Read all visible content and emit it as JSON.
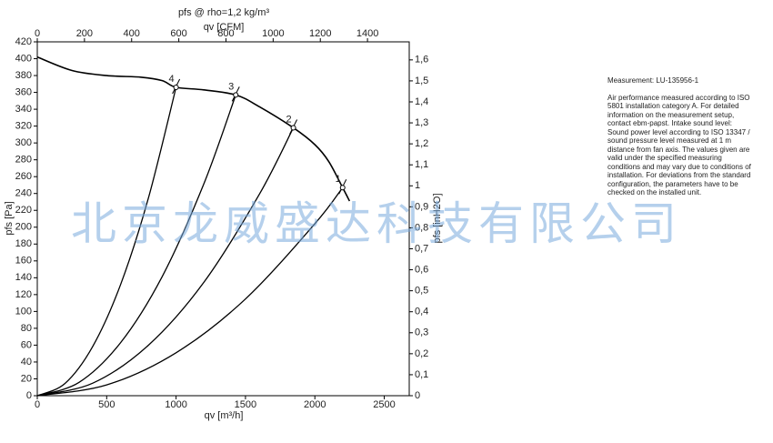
{
  "chart_data": {
    "type": "line",
    "title": "pfs @ rho=1,2 kg/m³",
    "x_label": "qv [m³/h]",
    "x2_label": "qv [CFM]",
    "y_label": "pfs [Pa]",
    "y2_label": "pfs [inH2O]",
    "xlim": [
      0,
      2680
    ],
    "xticks": [
      0,
      500,
      1000,
      1500,
      2000,
      2500
    ],
    "x2lim": [
      0,
      1577
    ],
    "x2ticks": [
      0,
      200,
      400,
      600,
      800,
      1000,
      1200,
      1400
    ],
    "ylim": [
      0,
      420
    ],
    "yticks": [
      0,
      20,
      40,
      60,
      80,
      100,
      120,
      140,
      160,
      180,
      200,
      220,
      240,
      260,
      280,
      300,
      320,
      340,
      360,
      380,
      400,
      420
    ],
    "y2lim": [
      0,
      1.686
    ],
    "y2ticks": [
      0,
      {
        "value": 0.1,
        "label": "0,1"
      },
      {
        "value": 0.2,
        "label": "0,2"
      },
      {
        "value": 0.3,
        "label": "0,3"
      },
      {
        "value": 0.4,
        "label": "0,4"
      },
      {
        "value": 0.5,
        "label": "0,5"
      },
      {
        "value": 0.6,
        "label": "0,6"
      },
      {
        "value": 0.7,
        "label": "0,7"
      },
      {
        "value": 0.8,
        "label": "0,8"
      },
      {
        "value": 0.9,
        "label": "0,9"
      },
      1,
      {
        "value": 1.1,
        "label": "1,1"
      },
      {
        "value": 1.2,
        "label": "1,2"
      },
      {
        "value": 1.3,
        "label": "1,3"
      },
      {
        "value": 1.4,
        "label": "1,4"
      },
      {
        "value": 1.5,
        "label": "1,5"
      },
      {
        "value": 1.6,
        "label": "1,6"
      }
    ],
    "grid": false,
    "color": "#000000",
    "series": [
      {
        "x": [
          0,
          250,
          500,
          750,
          900,
          1000,
          1200,
          1430,
          1600,
          1845,
          2000,
          2100,
          2200,
          2250
        ],
        "values": [
          402,
          386,
          380,
          378,
          374,
          366,
          363,
          357,
          343,
          318,
          298,
          278,
          247,
          231
        ]
      },
      {
        "x": [
          0,
          200,
          400,
          600,
          800,
          1000
        ],
        "values": [
          0,
          14.6,
          58.6,
          131.8,
          234.2,
          366
        ]
      },
      {
        "x": [
          0,
          300,
          600,
          900,
          1200,
          1430
        ],
        "values": [
          0,
          15.7,
          62.9,
          141.4,
          251.4,
          357
        ]
      },
      {
        "x": [
          0,
          400,
          800,
          1200,
          1600,
          1845
        ],
        "values": [
          0,
          14.9,
          59.8,
          134.5,
          239.1,
          318
        ]
      },
      {
        "x": [
          0,
          500,
          1000,
          1500,
          2000,
          2200
        ],
        "values": [
          0,
          12.8,
          51.0,
          114.8,
          204.1,
          247
        ]
      }
    ],
    "points": [
      {
        "label": "1",
        "x": 2200,
        "y": 247
      },
      {
        "label": "2",
        "x": 1845,
        "y": 318
      },
      {
        "label": "3",
        "x": 1430,
        "y": 357
      },
      {
        "label": "4",
        "x": 1000,
        "y": 366
      }
    ]
  },
  "note": {
    "heading": "Measurement: LU-135956-1",
    "text": "Air performance measured according to ISO 5801 installation category A. For detailed information on the measurement setup, contact ebm-papst. Intake sound level: Sound power level according to ISO 13347 / sound pressure level measured at 1 m distance from fan axis. The values given are valid under the specified measuring conditions and may vary due to conditions of installation. For deviations from the standard configuration, the parameters have to be checked on the installed unit."
  },
  "watermark": "北京龙威盛达科技有限公司"
}
